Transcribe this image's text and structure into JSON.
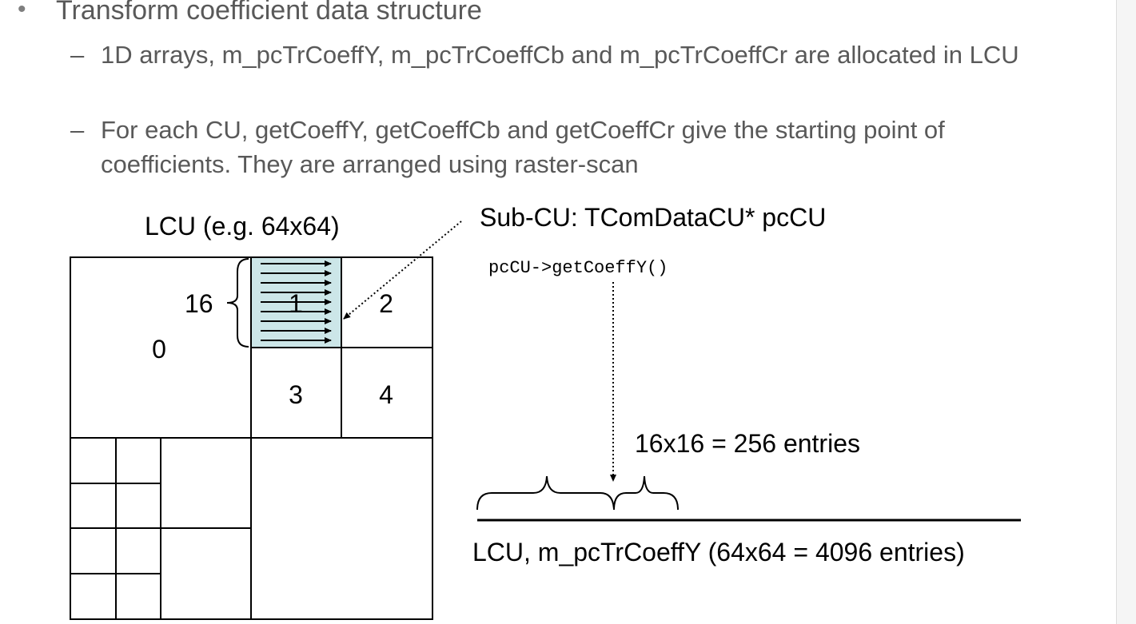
{
  "bullet": {
    "marker": "•",
    "text": "Transform coefficient data structure"
  },
  "sub_bullets": [
    {
      "marker": "–",
      "text": "1D arrays, m_pcTrCoeffY, m_pcTrCoeffCb and m_pcTrCoeffCr are allocated in LCU"
    },
    {
      "marker": "–",
      "text": "For each CU, getCoeffY, getCoeffCb and getCoeffCr give the starting point of coefficients. They are arranged using raster-scan"
    }
  ],
  "diagram": {
    "lcu_title": "LCU (e.g. 64x64)",
    "subcu_title": "Sub-CU: TComDataCU* pcCU",
    "call": "pcCU->getCoeffY()",
    "size_label": "16",
    "entries_label": "16x16 = 256 entries",
    "array_label": "LCU, m_pcTrCoeffY (64x64 = 4096 entries)",
    "cells": [
      "0",
      "1",
      "2",
      "3",
      "4"
    ],
    "highlight_color": "#cce6e8"
  }
}
